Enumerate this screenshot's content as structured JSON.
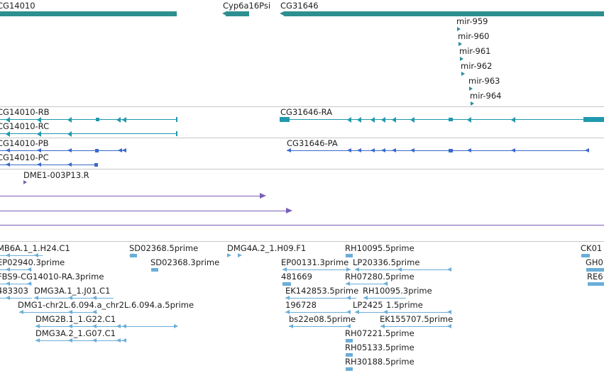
{
  "colors": {
    "gene": "#2d8f8f",
    "transcript_rna": "#1f99ad",
    "transcript_protein": "#3a69c9",
    "primer": "#7a5fb8",
    "est": "#6aaed8",
    "separator": "#c8c8c8"
  },
  "genes": {
    "cg14010": "CG14010",
    "cyp6a16psi": "Cyp6a16Psi",
    "cg31646": "CG31646"
  },
  "mirnas": [
    "mir-959",
    "mir-960",
    "mir-961",
    "mir-962",
    "mir-963",
    "mir-964"
  ],
  "transcripts": {
    "rb": "CG14010-RB",
    "rc": "CG14010-RC",
    "ra": "CG31646-RA",
    "pb": "CG14010-PB",
    "pc": "CG14010-PC",
    "pa": "CG31646-PA"
  },
  "probes": {
    "primer": "DME1-003P13.R"
  },
  "ests": {
    "e1": "MB6A.1_1.H24.C1",
    "e2": "SD02368.5prime",
    "e3": "DMG4A.2_1.H09.F1",
    "e4": "RH10095.5prime",
    "e5": "CK01",
    "e6": "EP02940.3prime",
    "e7": "SD02368.3prime",
    "e8": "EP00131.3prime",
    "e9": "LP20336.5prime",
    "e10": "GH0",
    "e11": "FBS9-CG14010-RA.3prime",
    "e12": "481669",
    "e13": "RH07280.5prime",
    "e14": "RE6",
    "e15": "483303",
    "e16": "DMG3A.1_1.J01.C1",
    "e17": "EK142853.5prime",
    "e18": "RH10095.3prime",
    "e19": "DMG1-chr2L.6.094.a_chr2L.6.094.a.5prime",
    "e20": "196728",
    "e21": "LP2425",
    "e22": "1.5prime",
    "e23": "DMG2B.1_1.G22.C1",
    "e24": "bs22e08.5prime",
    "e25": "EK155707.5prime",
    "e26": "DMG3A.2_1.G07.C1",
    "e27": "RH07221.5prime",
    "e28": "RH05133.5prime",
    "e29": "RH30188.5prime"
  }
}
